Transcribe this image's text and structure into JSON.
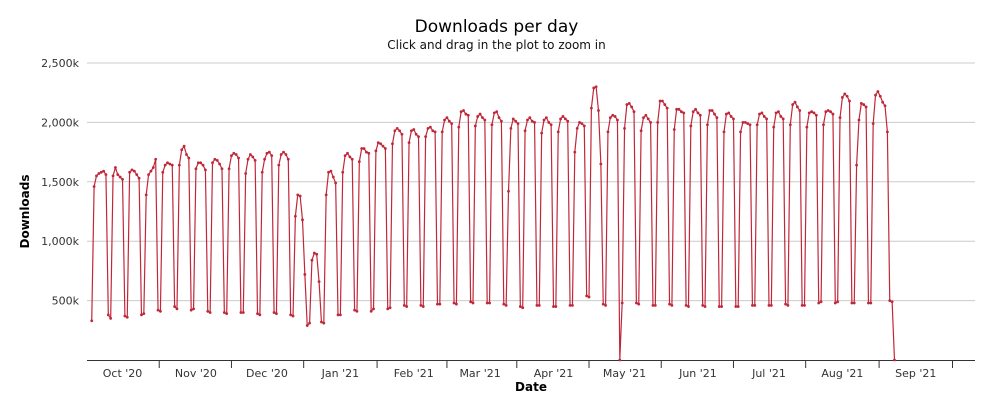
{
  "chart_data": {
    "type": "line",
    "title": "Downloads per day",
    "subtitle": "Click and drag in the plot to zoom in",
    "xlabel": "Date",
    "ylabel": "Downloads",
    "y_ticks": [
      {
        "value": 500000,
        "label": "500k"
      },
      {
        "value": 1000000,
        "label": "1,000k"
      },
      {
        "value": 1500000,
        "label": "1,500k"
      },
      {
        "value": 2000000,
        "label": "2,000k"
      },
      {
        "value": 2500000,
        "label": "2,500k"
      }
    ],
    "ylim": [
      0,
      2500000
    ],
    "xlim": [
      "2020-09-16",
      "2021-09-26"
    ],
    "x_ticks": [
      {
        "date": "2020-10-01",
        "label": "Oct '20"
      },
      {
        "date": "2020-11-01",
        "label": "Nov '20"
      },
      {
        "date": "2020-12-01",
        "label": "Dec '20"
      },
      {
        "date": "2021-01-01",
        "label": "Jan '21"
      },
      {
        "date": "2021-02-01",
        "label": "Feb '21"
      },
      {
        "date": "2021-03-01",
        "label": "Mar '21"
      },
      {
        "date": "2021-04-01",
        "label": "Apr '21"
      },
      {
        "date": "2021-05-01",
        "label": "May '21"
      },
      {
        "date": "2021-06-01",
        "label": "Jun '21"
      },
      {
        "date": "2021-07-01",
        "label": "Jul '21"
      },
      {
        "date": "2021-08-01",
        "label": "Aug '21"
      },
      {
        "date": "2021-09-01",
        "label": "Sep '21"
      }
    ],
    "grid": true,
    "legend": "none",
    "series": [
      {
        "color": "#c0283a",
        "start_date": "2020-09-18",
        "values": [
          330000,
          1460000,
          1550000,
          1570000,
          1580000,
          1590000,
          1560000,
          380000,
          350000,
          1550000,
          1620000,
          1560000,
          1540000,
          1520000,
          370000,
          360000,
          1580000,
          1600000,
          1590000,
          1560000,
          1530000,
          380000,
          390000,
          1390000,
          1560000,
          1590000,
          1620000,
          1690000,
          420000,
          410000,
          1580000,
          1640000,
          1660000,
          1650000,
          1640000,
          450000,
          430000,
          1640000,
          1770000,
          1800000,
          1730000,
          1700000,
          420000,
          430000,
          1610000,
          1660000,
          1660000,
          1640000,
          1600000,
          410000,
          400000,
          1660000,
          1690000,
          1680000,
          1650000,
          1610000,
          400000,
          390000,
          1610000,
          1720000,
          1740000,
          1730000,
          1700000,
          400000,
          400000,
          1570000,
          1690000,
          1730000,
          1710000,
          1680000,
          390000,
          380000,
          1580000,
          1690000,
          1740000,
          1750000,
          1720000,
          400000,
          390000,
          1640000,
          1730000,
          1750000,
          1730000,
          1690000,
          380000,
          370000,
          1210000,
          1390000,
          1380000,
          1180000,
          720000,
          290000,
          310000,
          840000,
          900000,
          890000,
          660000,
          320000,
          310000,
          1390000,
          1580000,
          1590000,
          1540000,
          1490000,
          380000,
          380000,
          1580000,
          1720000,
          1740000,
          1710000,
          1690000,
          420000,
          410000,
          1670000,
          1780000,
          1780000,
          1750000,
          1740000,
          410000,
          430000,
          1760000,
          1830000,
          1820000,
          1800000,
          1780000,
          430000,
          440000,
          1820000,
          1930000,
          1950000,
          1930000,
          1900000,
          460000,
          450000,
          1830000,
          1930000,
          1940000,
          1900000,
          1880000,
          460000,
          450000,
          1880000,
          1950000,
          1960000,
          1930000,
          1920000,
          470000,
          470000,
          1920000,
          2020000,
          2040000,
          2010000,
          1990000,
          480000,
          470000,
          1960000,
          2090000,
          2100000,
          2070000,
          2060000,
          490000,
          480000,
          1970000,
          2050000,
          2070000,
          2040000,
          2020000,
          480000,
          480000,
          1980000,
          2080000,
          2090000,
          2040000,
          2010000,
          470000,
          460000,
          1420000,
          1950000,
          2030000,
          2010000,
          1990000,
          450000,
          440000,
          1930000,
          2020000,
          2040000,
          2010000,
          2000000,
          460000,
          460000,
          1910000,
          2020000,
          2040000,
          2000000,
          1980000,
          450000,
          450000,
          1920000,
          2030000,
          2050000,
          2030000,
          2010000,
          460000,
          460000,
          1750000,
          1950000,
          2000000,
          1990000,
          1970000,
          540000,
          530000,
          2120000,
          2290000,
          2300000,
          2100000,
          1650000,
          470000,
          460000,
          1920000,
          2040000,
          2060000,
          2050000,
          2020000,
          0,
          480000,
          1950000,
          2150000,
          2160000,
          2130000,
          2090000,
          480000,
          470000,
          1930000,
          2040000,
          2060000,
          2030000,
          2000000,
          460000,
          460000,
          2000000,
          2180000,
          2180000,
          2150000,
          2120000,
          470000,
          460000,
          1940000,
          2110000,
          2110000,
          2090000,
          2080000,
          460000,
          450000,
          1970000,
          2090000,
          2110000,
          2080000,
          2060000,
          460000,
          450000,
          1980000,
          2100000,
          2100000,
          2070000,
          2040000,
          450000,
          450000,
          1920000,
          2070000,
          2080000,
          2050000,
          2030000,
          450000,
          450000,
          1920000,
          2000000,
          2000000,
          1990000,
          1980000,
          460000,
          460000,
          1980000,
          2070000,
          2080000,
          2050000,
          2030000,
          460000,
          460000,
          1960000,
          2080000,
          2090000,
          2050000,
          2030000,
          470000,
          460000,
          1980000,
          2150000,
          2170000,
          2130000,
          2100000,
          460000,
          460000,
          1960000,
          2080000,
          2090000,
          2080000,
          2060000,
          480000,
          490000,
          1980000,
          2090000,
          2100000,
          2090000,
          2070000,
          480000,
          490000,
          2040000,
          2210000,
          2240000,
          2220000,
          2180000,
          480000,
          480000,
          1640000,
          2020000,
          2160000,
          2150000,
          2130000,
          480000,
          480000,
          1990000,
          2230000,
          2260000,
          2220000,
          2170000,
          2140000,
          1920000,
          500000,
          490000,
          0
        ]
      }
    ]
  }
}
